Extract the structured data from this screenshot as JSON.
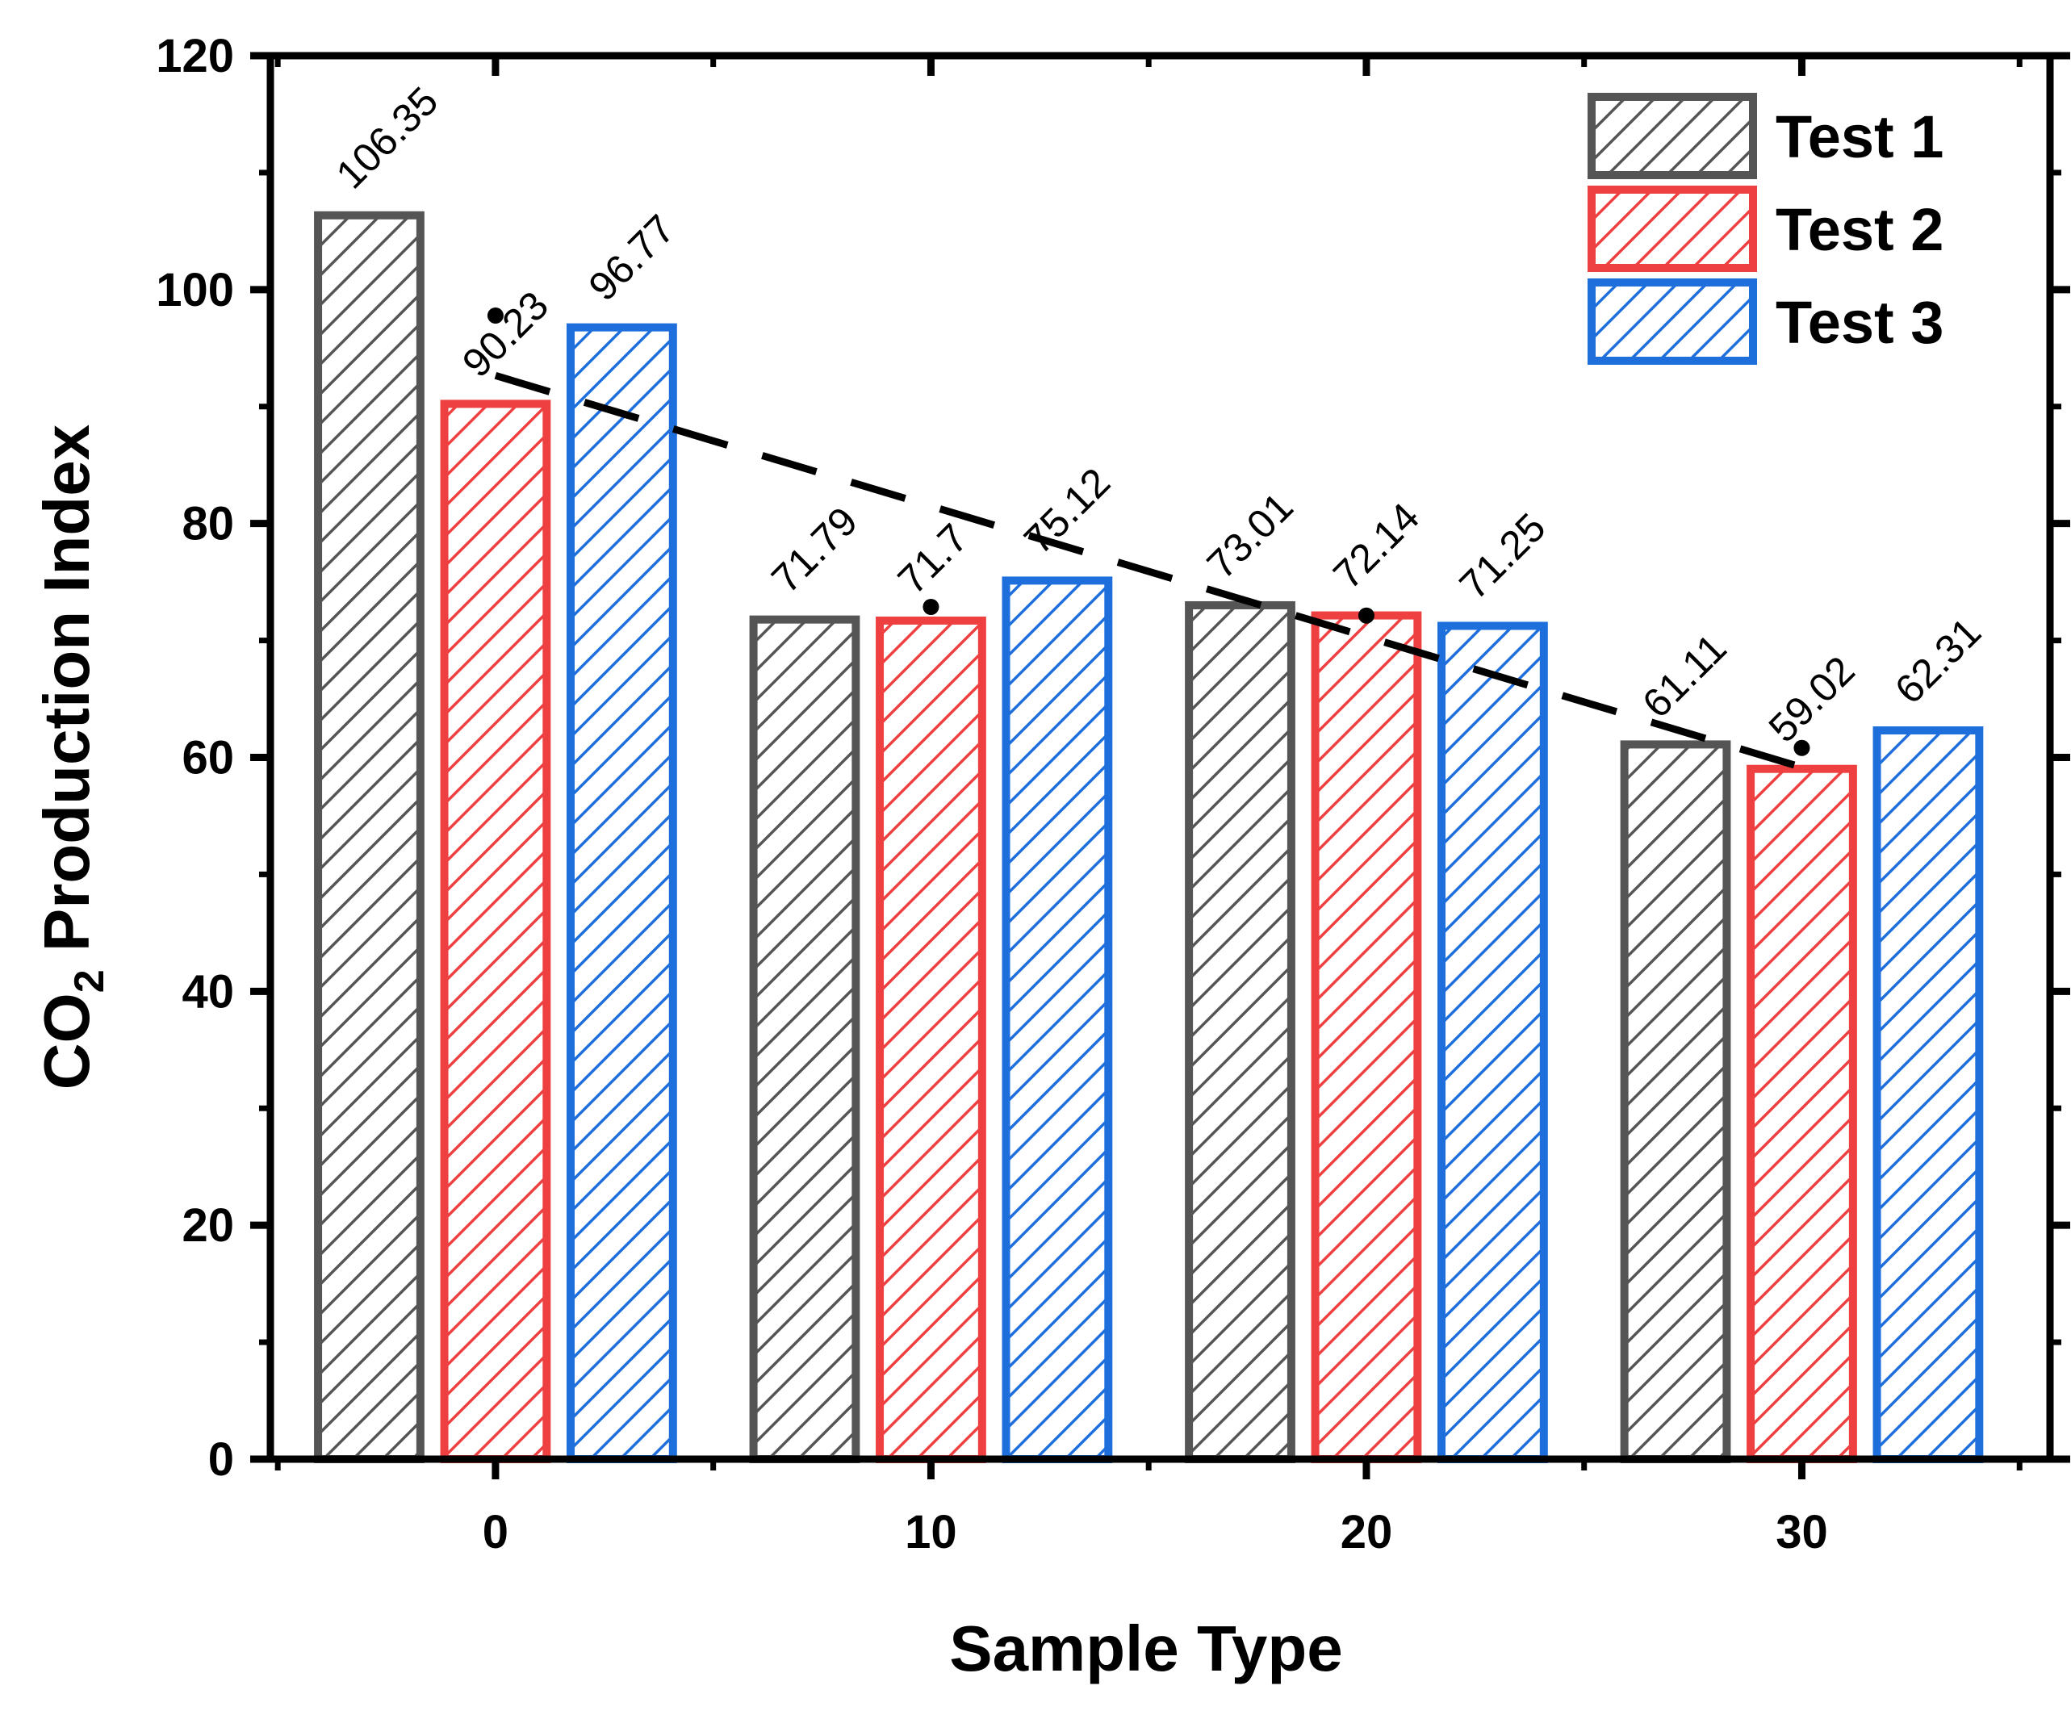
{
  "chart_data": {
    "type": "bar",
    "title": "",
    "xlabel": "Sample Type",
    "ylabel": "CO2 Production Index",
    "ylabel_main": "CO",
    "ylabel_sub": "2",
    "ylabel_rest": " Production Index",
    "categories": [
      "0",
      "10",
      "20",
      "30"
    ],
    "x": [
      0,
      10,
      20,
      30
    ],
    "ylim": [
      0,
      120
    ],
    "yticks": [
      0,
      20,
      40,
      60,
      80,
      100,
      120
    ],
    "series": [
      {
        "name": "Test 1",
        "color": "#555555",
        "values": [
          106.35,
          71.79,
          73.01,
          61.11
        ],
        "labels": [
          "106.35",
          "71.79",
          "73.01",
          "61.11"
        ]
      },
      {
        "name": "Test 2",
        "color": "#ee4040",
        "values": [
          90.23,
          71.7,
          72.14,
          59.02
        ],
        "labels": [
          "90.23",
          "71.7",
          "72.14",
          "59.02"
        ]
      },
      {
        "name": "Test 3",
        "color": "#1e6fdc",
        "values": [
          96.77,
          75.12,
          71.25,
          62.31
        ],
        "labels": [
          "96.77",
          "75.12",
          "71.25",
          "62.31"
        ]
      }
    ],
    "mean_points": [
      97.78,
      72.87,
      72.13,
      60.81
    ],
    "trendline": {
      "style": "dashed",
      "type": "linear",
      "slope": -1.1165,
      "intercept": 92.65
    },
    "legend": "top-right",
    "grid": false
  }
}
